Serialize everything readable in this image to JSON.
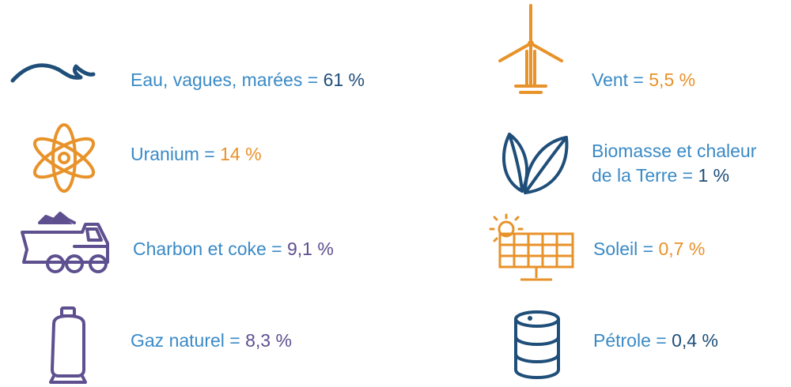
{
  "colors": {
    "label_blue": "#3a8ac6",
    "navy": "#1f4e79",
    "orange": "#e8922a",
    "purple": "#5e4f8f"
  },
  "sources": [
    {
      "id": "water",
      "icon": "wave-icon",
      "label": "Eau, vagues, marées =",
      "value": "61 %",
      "value_color": "#1f4e79"
    },
    {
      "id": "wind",
      "icon": "wind-turbine-icon",
      "label": "Vent  =",
      "value": "5,5 %",
      "value_color": "#e8922a"
    },
    {
      "id": "uranium",
      "icon": "atom-icon",
      "label": "Uranium =",
      "value": "14 %",
      "value_color": "#e8922a"
    },
    {
      "id": "biomass",
      "icon": "leaves-icon",
      "label": "Biomasse et chaleur",
      "label_line2": "de la Terre =",
      "value": "1 %",
      "value_color": "#1f4e79"
    },
    {
      "id": "coal",
      "icon": "dump-truck-icon",
      "label": "Charbon et coke =",
      "value": "9,1 %",
      "value_color": "#5e4f8f"
    },
    {
      "id": "solar",
      "icon": "solar-panel-icon",
      "label": "Soleil =",
      "value": "0,7 %",
      "value_color": "#e8922a"
    },
    {
      "id": "gas",
      "icon": "gas-cylinder-icon",
      "label": "Gaz naturel =",
      "value": "8,3 %",
      "value_color": "#5e4f8f"
    },
    {
      "id": "oil",
      "icon": "oil-barrel-icon",
      "label": "Pétrole =",
      "value": "0,4 %",
      "value_color": "#1f4e79"
    }
  ]
}
